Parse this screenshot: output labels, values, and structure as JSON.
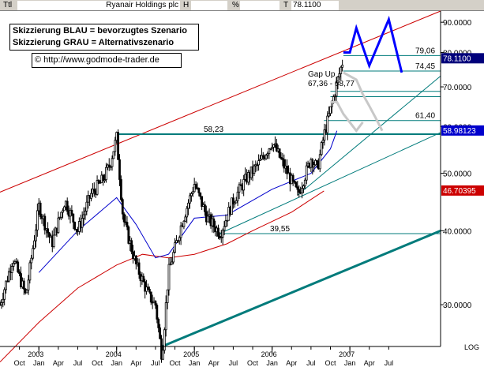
{
  "header": {
    "ttl_label": "Ttl",
    "instrument": "Ryanair Holdings plc",
    "h_label": "H",
    "pct_label": "%",
    "t_label": "T",
    "last_price": "78.1100"
  },
  "legend": {
    "line1": "Skizzierung BLAU = bevorzugtes Szenario",
    "line2": "Skizzierung GRAU = Alternativszenario",
    "copyright": "© http://www.godmode-trader.de"
  },
  "colors": {
    "candle": "#000000",
    "channel_upper": "#cc0000",
    "ma_fast": "#0000cc",
    "ma_slow": "#cc0000",
    "trend_teal": "#007b7b",
    "scenario_blue": "#0000ff",
    "scenario_grey": "#c8c8c8",
    "badge_current": "#00007b",
    "badge_ma_blue": "#0000cc",
    "badge_ma_red": "#cc0000"
  },
  "chart_data": {
    "type": "candlestick",
    "y_scale": "log",
    "ylim": [
      25.5,
      94
    ],
    "y_ticks": [
      "90.0000",
      "80.0000",
      "70.0000",
      "60.0000",
      "50.0000",
      "40.0000",
      "30.0000"
    ],
    "y_tick_values": [
      90,
      80,
      70,
      60,
      50,
      40,
      30
    ],
    "scale_label": "LOG",
    "x_month_ticks": [
      "Oct",
      "Jan",
      "Apr",
      "Jul",
      "Oct",
      "Jan",
      "Apr",
      "Jul",
      "Oct",
      "Jan",
      "Apr",
      "Jul",
      "Oct",
      "Jan",
      "Apr",
      "Jul",
      "Oct",
      "Jan",
      "Apr",
      "Jul"
    ],
    "x_year_ticks": [
      "2003",
      "2004",
      "2005",
      "2006",
      "2007"
    ],
    "price_badges": [
      {
        "label": "78.1100",
        "value": 78.11,
        "kind": "current"
      },
      {
        "label": "58.98123",
        "value": 58.98,
        "kind": "ma_blue"
      },
      {
        "label": "46.70395",
        "value": 46.7,
        "kind": "ma_red"
      }
    ],
    "levels": [
      {
        "label": "79,06",
        "value": 79.06
      },
      {
        "label": "74,45",
        "value": 74.45
      },
      {
        "label": "61,40",
        "value": 61.4
      },
      {
        "label": "58,23",
        "value": 58.23
      },
      {
        "label": "39,55",
        "value": 39.55
      }
    ],
    "gap_up": {
      "title": "Gap Up",
      "range": "67,36 - 68,77",
      "low": 67.36,
      "high": 68.77
    },
    "price_path": [
      [
        "2002-07",
        30.0
      ],
      [
        "2002-09",
        36.0
      ],
      [
        "2002-11",
        31.0
      ],
      [
        "2003-01",
        44.0
      ],
      [
        "2003-03",
        38.0
      ],
      [
        "2003-05",
        45.0
      ],
      [
        "2003-07",
        40.0
      ],
      [
        "2003-09",
        46.0
      ],
      [
        "2003-11",
        49.0
      ],
      [
        "2003-12",
        52.0
      ],
      [
        "2004-01",
        57.5
      ],
      [
        "2004-02",
        42.0
      ],
      [
        "2004-04",
        35.0
      ],
      [
        "2004-06",
        31.0
      ],
      [
        "2004-07",
        30.0
      ],
      [
        "2004-08",
        24.5
      ],
      [
        "2004-09",
        34.0
      ],
      [
        "2004-11",
        41.0
      ],
      [
        "2005-01",
        48.0
      ],
      [
        "2005-03",
        42.0
      ],
      [
        "2005-05",
        39.6
      ],
      [
        "2005-07",
        45.0
      ],
      [
        "2005-09",
        49.0
      ],
      [
        "2005-11",
        52.0
      ],
      [
        "2006-01",
        56.5
      ],
      [
        "2006-03",
        51.0
      ],
      [
        "2006-05",
        46.0
      ],
      [
        "2006-07",
        53.0
      ],
      [
        "2006-08",
        51.0
      ],
      [
        "2006-09",
        58.0
      ],
      [
        "2006-10",
        64.0
      ],
      [
        "2006-11",
        71.0
      ],
      [
        "2006-12",
        78.1
      ]
    ],
    "ma_fast": [
      [
        "2003-01",
        34.0
      ],
      [
        "2003-07",
        40.0
      ],
      [
        "2004-01",
        45.5
      ],
      [
        "2004-04",
        41.0
      ],
      [
        "2004-07",
        36.0
      ],
      [
        "2004-09",
        36.5
      ],
      [
        "2005-01",
        42.0
      ],
      [
        "2005-06",
        42.5
      ],
      [
        "2006-01",
        47.0
      ],
      [
        "2006-07",
        50.0
      ],
      [
        "2006-10",
        55.0
      ],
      [
        "2006-11",
        59.0
      ]
    ],
    "ma_slow": [
      [
        "2002-07",
        24.0
      ],
      [
        "2003-01",
        28.0
      ],
      [
        "2003-07",
        32.0
      ],
      [
        "2004-01",
        35.0
      ],
      [
        "2004-05",
        36.5
      ],
      [
        "2004-09",
        36.0
      ],
      [
        "2005-01",
        36.5
      ],
      [
        "2005-06",
        38.0
      ],
      [
        "2005-10",
        40.0
      ],
      [
        "2006-04",
        43.0
      ],
      [
        "2006-09",
        46.7
      ]
    ],
    "scenario_blue": [
      [
        "2006-12",
        80.0
      ],
      [
        "2007-01",
        80.0
      ],
      [
        "2007-02",
        88.0
      ],
      [
        "2007-04",
        76.0
      ],
      [
        "2007-07",
        91.0
      ],
      [
        "2007-09",
        74.0
      ]
    ],
    "scenario_grey": [
      [
        "2006-12",
        74.0
      ],
      [
        "2007-02",
        72.0
      ],
      [
        "2007-03",
        68.0
      ],
      [
        "2007-04",
        65.0
      ],
      [
        "2007-05",
        62.0
      ],
      [
        "2007-06",
        59.0
      ]
    ],
    "grey_flag": [
      [
        "2006-10",
        66.0
      ],
      [
        "2006-11",
        66.0
      ],
      [
        "2006-12",
        63.0
      ],
      [
        "2007-02",
        59.0
      ],
      [
        "2007-03",
        61.0
      ]
    ],
    "trend_lines": [
      {
        "kind": "channel_upper",
        "from": [
          "2002-06",
          46.0
        ],
        "to": [
          "2008-03",
          94.0
        ]
      },
      {
        "kind": "thick_support",
        "from": [
          "2004-08",
          25.5
        ],
        "to": [
          "2008-03",
          40.0
        ]
      },
      {
        "kind": "thin_support",
        "from": [
          "2005-05",
          39.6
        ],
        "to": [
          "2008-03",
          58.6
        ]
      },
      {
        "kind": "steep_support",
        "from": [
          "2006-05",
          46.0
        ],
        "to": [
          "2008-03",
          73.0
        ]
      }
    ]
  }
}
